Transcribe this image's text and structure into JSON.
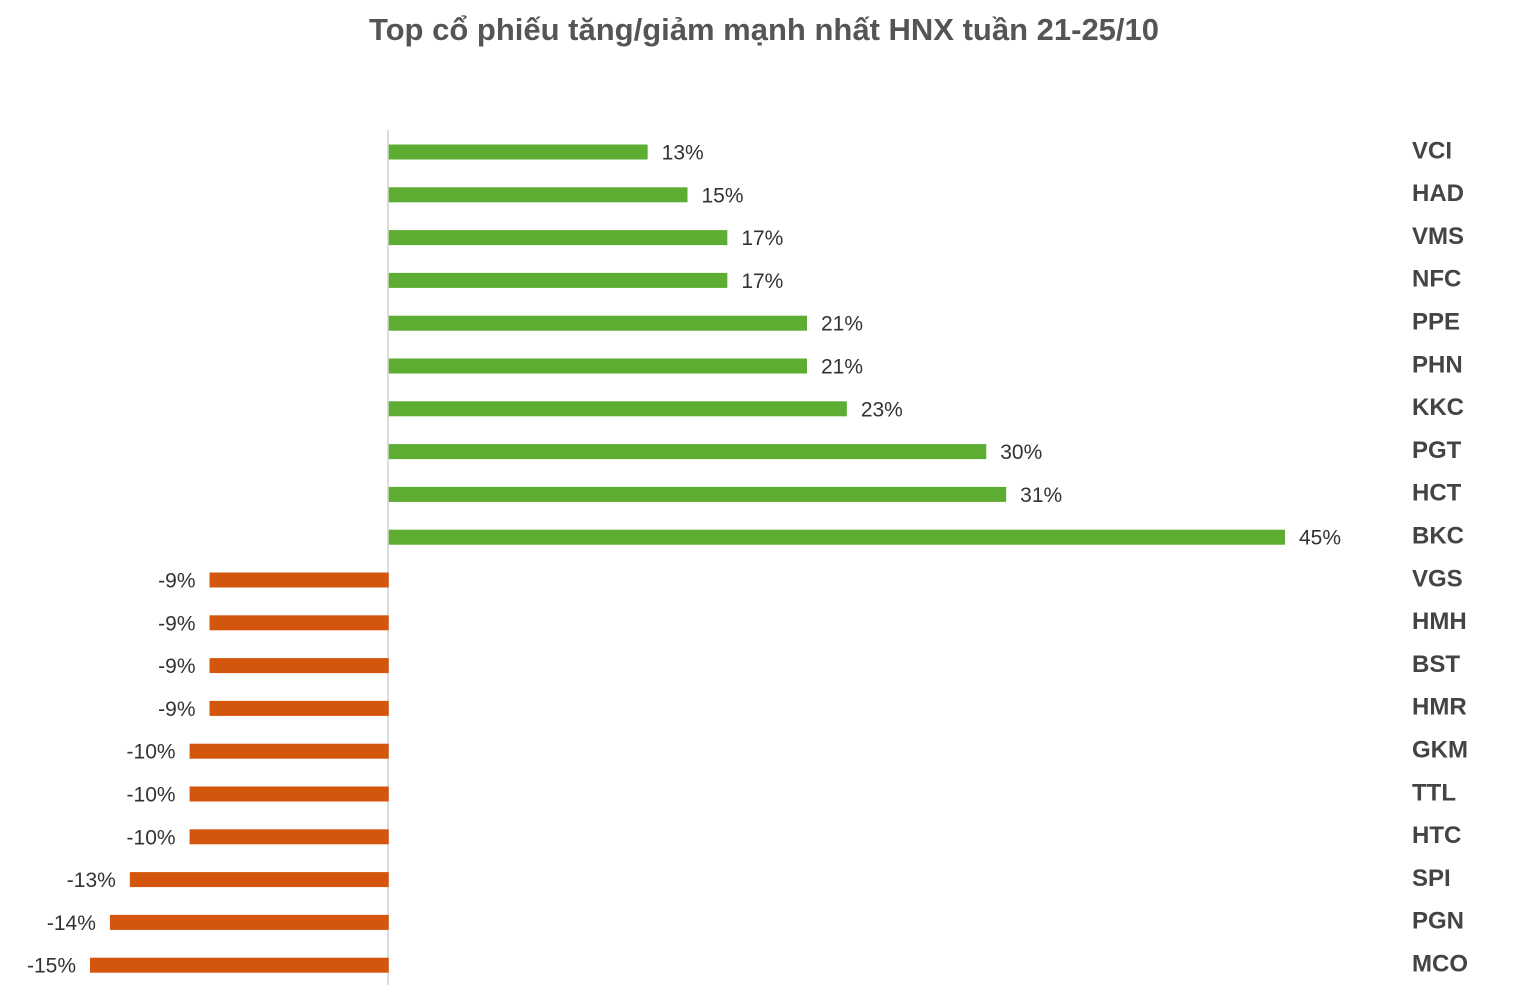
{
  "chart_data": {
    "type": "hbar",
    "title": "Top cổ phiếu tăng/giảm mạnh nhất HNX tuần 21-25/10",
    "categories": [
      "VCI",
      "HAD",
      "VMS",
      "NFC",
      "PPE",
      "PHN",
      "KKC",
      "PGT",
      "HCT",
      "BKC",
      "VGS",
      "HMH",
      "BST",
      "HMR",
      "GKM",
      "TTL",
      "HTC",
      "SPI",
      "PGN",
      "MCO"
    ],
    "values": [
      13,
      15,
      17,
      17,
      21,
      21,
      23,
      30,
      31,
      45,
      -9,
      -9,
      -9,
      -9,
      -10,
      -10,
      -10,
      -13,
      -14,
      -15
    ],
    "value_labels": [
      "13%",
      "15%",
      "17%",
      "17%",
      "21%",
      "21%",
      "23%",
      "30%",
      "31%",
      "45%",
      "-9%",
      "-9%",
      "-9%",
      "-9%",
      "-10%",
      "-10%",
      "-10%",
      "-13%",
      "-14%",
      "-15%"
    ],
    "positive_color": "#5cad32",
    "negative_color": "#d4560c",
    "xlim": [
      -15,
      45
    ]
  }
}
